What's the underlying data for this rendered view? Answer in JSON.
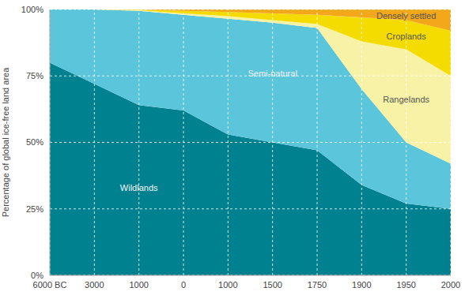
{
  "chart_data": {
    "type": "area",
    "y_label": "Percentage of global ice-free land area",
    "categories": [
      "6000 BC",
      "3000",
      "1000",
      "0",
      "1000",
      "1500",
      "1750",
      "1900",
      "1950",
      "2000"
    ],
    "series": [
      {
        "name": "Wildlands",
        "color": "#00818f",
        "values": [
          80,
          72,
          64,
          62,
          53,
          50,
          47,
          34,
          27,
          25
        ]
      },
      {
        "name": "Semi-natural",
        "color": "#5bc5dc",
        "values": [
          20,
          28,
          35.5,
          36,
          43.5,
          45,
          46,
          36,
          23,
          17
        ]
      },
      {
        "name": "Rangelands",
        "color": "#f8f2a6",
        "values": [
          0,
          0,
          0.2,
          0.5,
          1,
          1,
          1.5,
          18,
          35,
          33
        ]
      },
      {
        "name": "Croplands",
        "color": "#f5dc00",
        "values": [
          0,
          0,
          0.2,
          1,
          1.5,
          2.5,
          3.5,
          9,
          11,
          17
        ]
      },
      {
        "name": "Densely settled",
        "color": "#f3a71a",
        "values": [
          0,
          0,
          0.1,
          0.5,
          1,
          1.5,
          2,
          3,
          4,
          8
        ]
      }
    ],
    "ylim": [
      0,
      100
    ],
    "yticks": [
      {
        "value": 0,
        "label": "0%"
      },
      {
        "value": 25,
        "label": "25%"
      },
      {
        "value": 50,
        "label": "50%"
      },
      {
        "value": 75,
        "label": "75%"
      },
      {
        "value": 100,
        "label": "100%"
      }
    ],
    "grid": true,
    "stacked": true
  }
}
